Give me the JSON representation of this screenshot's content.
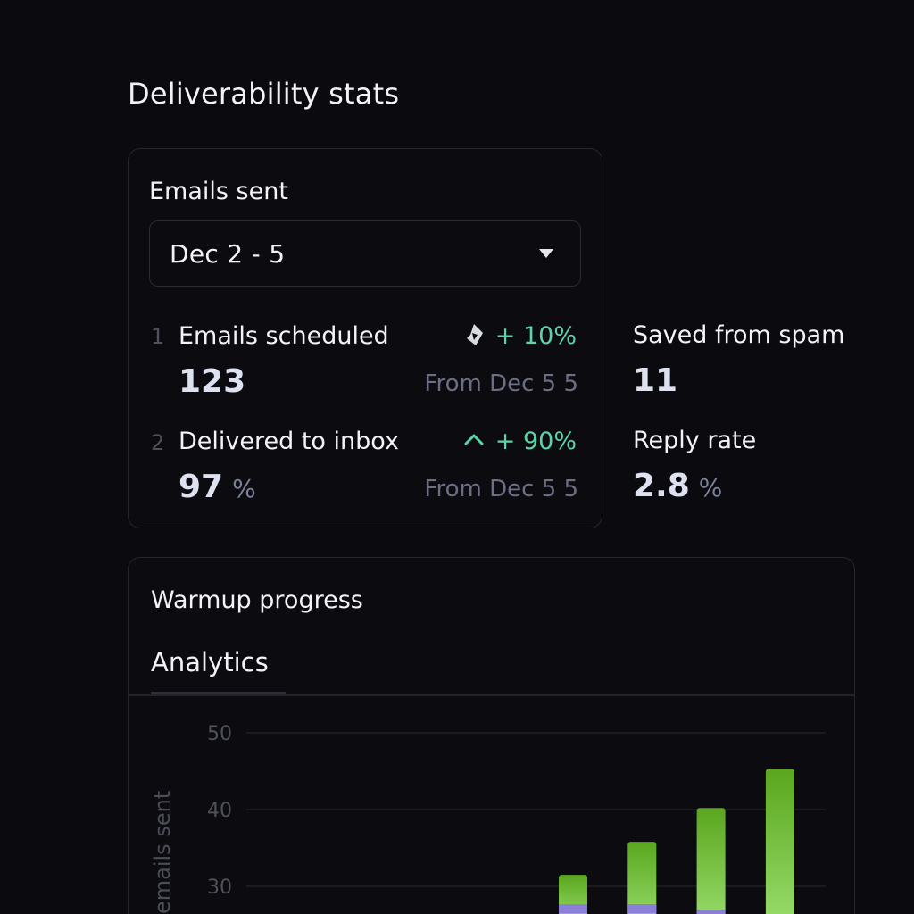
{
  "page": {
    "title": "Deliverability stats"
  },
  "emails_card": {
    "title": "Emails sent",
    "date_range": {
      "selected": "Dec 2 - 5",
      "icon": "chevron-down-icon"
    },
    "stats": [
      {
        "index": "1",
        "label": "Emails scheduled",
        "value": "123",
        "unit": "",
        "change": "+ 10%",
        "comparison": "From Dec 5 5",
        "icon": "trend-arrow-icon"
      },
      {
        "index": "2",
        "label": "Delivered to inbox",
        "value": "97",
        "unit": "%",
        "change": "+ 90%",
        "comparison": "From Dec 5 5",
        "icon": "chevron-up-icon"
      }
    ]
  },
  "side_stats": [
    {
      "label": "Saved from spam",
      "value": "11",
      "unit": ""
    },
    {
      "label": "Reply rate",
      "value": "2.8",
      "unit": "%"
    }
  ],
  "warmup_card": {
    "title": "Warmup progress",
    "tabs": [
      {
        "label": "Analytics",
        "active": true
      }
    ]
  },
  "colors": {
    "positive": "#5fd3a8",
    "bar_green_top": "#5aa61e",
    "bar_green_bottom": "#97dc6a",
    "bar_purple": "#8b7fd6"
  },
  "chart_data": {
    "type": "bar",
    "ylabel": "emails sent",
    "yticks": [
      30,
      40,
      50
    ],
    "ylim": [
      0,
      50
    ],
    "grid": true,
    "series": [
      {
        "values": [
          31.5,
          35.8,
          40.2,
          45.3
        ]
      },
      {
        "values": [
          1.2,
          1.2,
          1.0,
          0
        ]
      }
    ]
  }
}
